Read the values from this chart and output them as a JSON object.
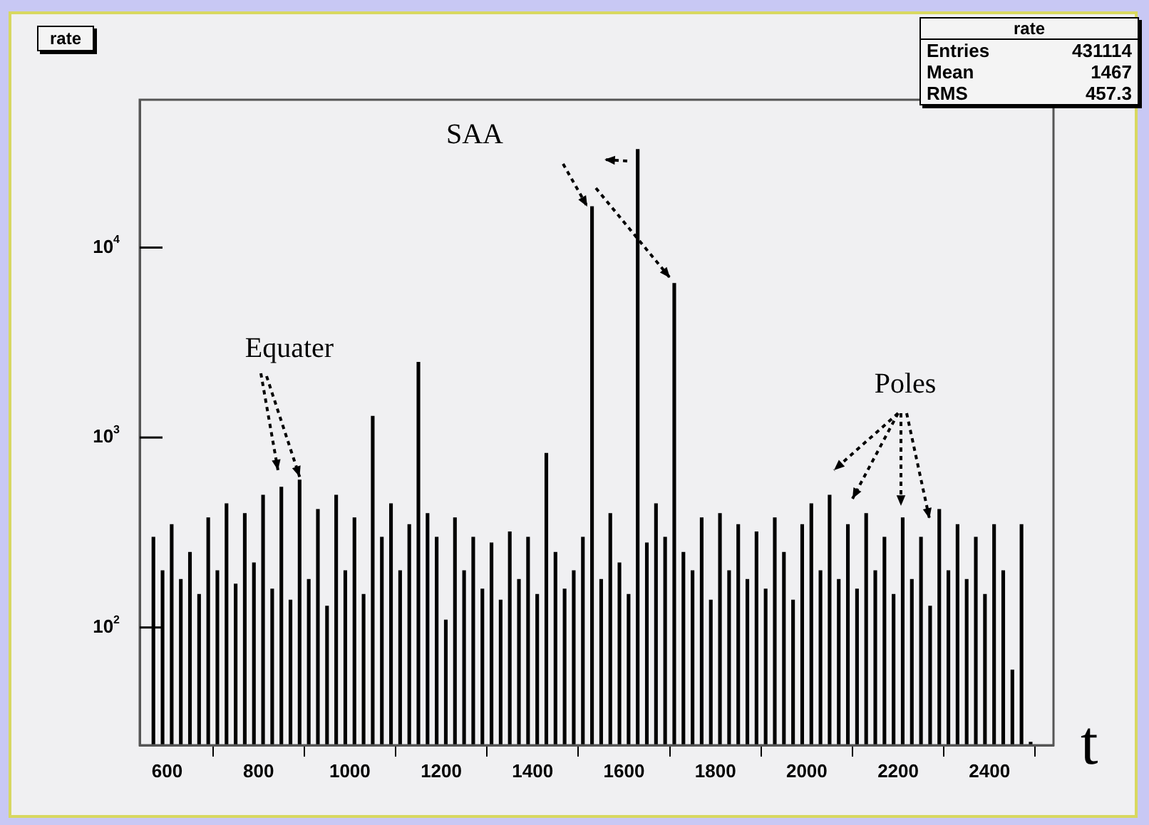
{
  "chart_data": {
    "type": "histogram",
    "title": "rate",
    "xlabel": "t",
    "color": "#000000",
    "bins": [
      560,
      580,
      600,
      620,
      640,
      660,
      680,
      700,
      720,
      740,
      760,
      780,
      800,
      820,
      840,
      860,
      880,
      900,
      920,
      940,
      960,
      980,
      1000,
      1020,
      1040,
      1060,
      1080,
      1100,
      1120,
      1140,
      1160,
      1180,
      1200,
      1220,
      1240,
      1260,
      1280,
      1300,
      1320,
      1340,
      1360,
      1380,
      1400,
      1420,
      1440,
      1460,
      1480,
      1500,
      1520,
      1540,
      1560,
      1580,
      1600,
      1620,
      1640,
      1660,
      1680,
      1700,
      1720,
      1740,
      1760,
      1780,
      1800,
      1820,
      1840,
      1860,
      1880,
      1900,
      1920,
      1940,
      1960,
      1980,
      2000,
      2020,
      2040,
      2060,
      2080,
      2100,
      2120,
      2140,
      2160,
      2180,
      2200,
      2220,
      2240,
      2260,
      2280,
      2300,
      2320,
      2340,
      2360,
      2380,
      2400,
      2420,
      2440,
      2460,
      2480,
      2500
    ],
    "values": [
      300,
      200,
      350,
      180,
      250,
      150,
      380,
      200,
      450,
      170,
      400,
      220,
      500,
      160,
      550,
      140,
      600,
      180,
      420,
      130,
      500,
      200,
      380,
      150,
      1300,
      300,
      450,
      200,
      350,
      2500,
      400,
      300,
      110,
      380,
      200,
      300,
      160,
      280,
      140,
      320,
      180,
      300,
      150,
      830,
      250,
      160,
      200,
      300,
      16500,
      180,
      400,
      220,
      150,
      33000,
      280,
      450,
      300,
      6500,
      250,
      200,
      380,
      140,
      400,
      200,
      350,
      180,
      320,
      160,
      380,
      250,
      140,
      350,
      450,
      200,
      500,
      180,
      350,
      160,
      400,
      200,
      300,
      150,
      380,
      180,
      300,
      130,
      420,
      200,
      350,
      180,
      300,
      150,
      350,
      200,
      60,
      350,
      25
    ],
    "log": "y",
    "xlim": [
      540,
      2540
    ],
    "ylim": [
      24,
      60000
    ],
    "xticks": [
      600,
      800,
      1000,
      1200,
      1400,
      1600,
      1800,
      2000,
      2200,
      2400
    ],
    "yticks": [
      {
        "value": 100,
        "label": "10$^{2}$"
      },
      {
        "value": 1000,
        "label": "10$^{3}$"
      },
      {
        "value": 10000,
        "label": "10$^{4}$"
      }
    ],
    "grid": false,
    "legend": false,
    "annotations": [
      "SAA",
      {
        "text": "Equater",
        "x": 890,
        "y": 600
      },
      "Poles",
      "Entries 431114",
      "Mean 1467",
      "RMS 457.3"
    ]
  }
}
